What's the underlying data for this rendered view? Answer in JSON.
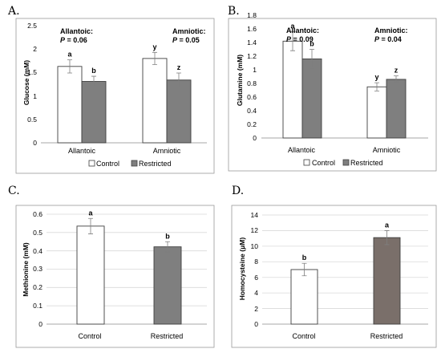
{
  "colors": {
    "control_fill": "#ffffff",
    "restricted_fill": "#7f7f7f",
    "restricted_fill_d": "#7a6f6a",
    "bar_stroke": "#404040"
  },
  "chart_data": [
    {
      "panel": "A.",
      "type": "bar",
      "ylabel": "Glucose (mM)",
      "ylim": [
        0,
        2.5
      ],
      "yticks": [
        "0",
        "0.5",
        "1",
        "1.5",
        "2",
        "2.5"
      ],
      "categories": [
        "Allantoic",
        "Amniotic"
      ],
      "series": [
        {
          "name": "Control",
          "values": [
            1.63,
            1.8
          ],
          "errors": [
            0.14,
            0.13
          ],
          "sig": [
            "a",
            "y"
          ]
        },
        {
          "name": "Restricted",
          "values": [
            1.31,
            1.34
          ],
          "errors": [
            0.11,
            0.15
          ],
          "sig": [
            "b",
            "z"
          ]
        }
      ],
      "annotations": [
        {
          "label": "Allantoic:",
          "p_label": "P",
          "p_value": " = 0.06"
        },
        {
          "label": "Amniotic:",
          "p_label": "P",
          "p_value": " = 0.05"
        }
      ],
      "legend": [
        "Control",
        "Restricted"
      ],
      "grid": false
    },
    {
      "panel": "B.",
      "type": "bar",
      "ylabel": "Glutamine (mM)",
      "ylim": [
        0,
        1.8
      ],
      "yticks": [
        "0",
        "0.2",
        "0.4",
        "0.6",
        "0.8",
        "1",
        "1.2",
        "1.4",
        "1.6",
        "1.8"
      ],
      "categories": [
        "Allantoic",
        "Amniotic"
      ],
      "series": [
        {
          "name": "Control",
          "values": [
            1.42,
            0.75
          ],
          "errors": [
            0.14,
            0.06
          ],
          "sig": [
            "a",
            "y"
          ]
        },
        {
          "name": "Restricted",
          "values": [
            1.16,
            0.86
          ],
          "errors": [
            0.14,
            0.05
          ],
          "sig": [
            "b",
            "z"
          ]
        }
      ],
      "annotations": [
        {
          "label": "Allantoic:",
          "p_label": "P",
          "p_value": " = 0.09"
        },
        {
          "label": "Amniotic:",
          "p_label": "P",
          "p_value": " = 0.04"
        }
      ],
      "legend": [
        "Control",
        "Restricted"
      ],
      "grid": false
    },
    {
      "panel": "C.",
      "type": "bar",
      "ylabel": "Methionine (mM)",
      "ylim": [
        0,
        0.6
      ],
      "yticks": [
        "0",
        "0.1",
        "0.2",
        "0.3",
        "0.4",
        "0.5",
        "0.6"
      ],
      "categories": [
        "Control",
        "Restricted"
      ],
      "values": [
        0.535,
        0.422
      ],
      "errors": [
        0.042,
        0.028
      ],
      "sig": [
        "a",
        "b"
      ],
      "grid": true
    },
    {
      "panel": "D.",
      "type": "bar",
      "ylabel": "Homocysteine (μM)",
      "ylim": [
        0,
        14
      ],
      "yticks": [
        "0",
        "2",
        "4",
        "6",
        "8",
        "10",
        "12",
        "14"
      ],
      "categories": [
        "Control",
        "Restricted"
      ],
      "values": [
        7.0,
        11.1
      ],
      "errors": [
        0.8,
        0.9
      ],
      "sig": [
        "b",
        "a"
      ],
      "grid": true
    }
  ]
}
